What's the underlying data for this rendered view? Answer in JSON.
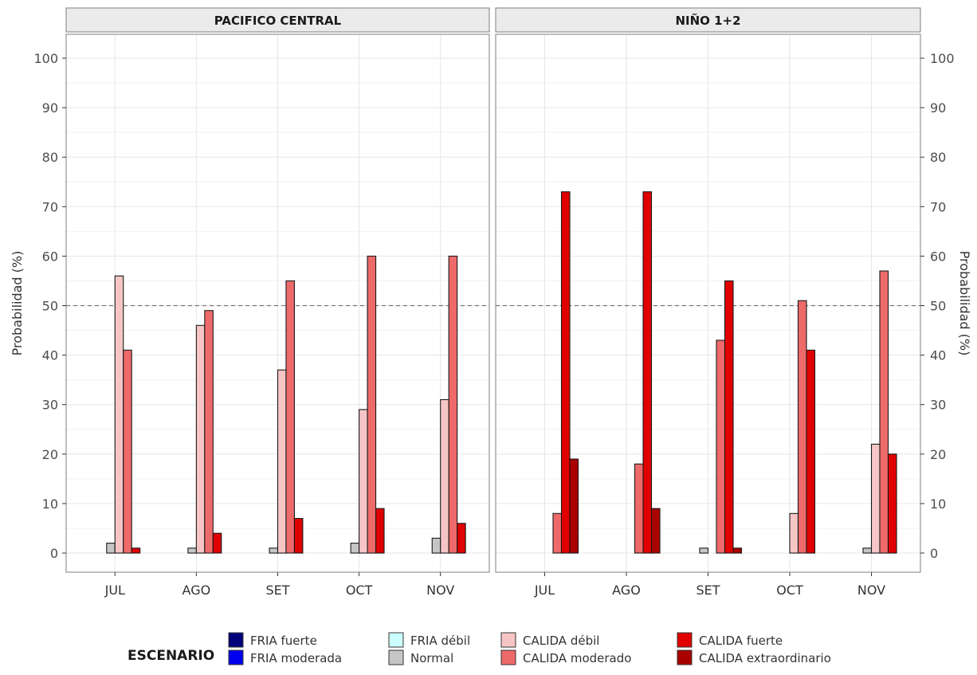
{
  "chart_data": {
    "type": "bar",
    "ylabel": "Probabilidad (%)",
    "ylim": [
      0,
      100
    ],
    "yticks": [
      0,
      10,
      20,
      30,
      40,
      50,
      60,
      70,
      80,
      90,
      100
    ],
    "reference_line": 50,
    "grid": true,
    "categories": [
      "JUL",
      "AGO",
      "SET",
      "OCT",
      "NOV"
    ],
    "legend": {
      "title": "ESCENARIO",
      "position": "bottom",
      "entries": [
        {
          "name": "FRIA fuerte",
          "color": "#00007a"
        },
        {
          "name": "FRIA moderada",
          "color": "#0000ee"
        },
        {
          "name": "FRIA débil",
          "color": "#ccffff"
        },
        {
          "name": "Normal",
          "color": "#c6c6c6"
        },
        {
          "name": "CALIDA débil",
          "color": "#f6c6c6"
        },
        {
          "name": "CALIDA moderado",
          "color": "#ee6a6a"
        },
        {
          "name": "CALIDA fuerte",
          "color": "#e00000"
        },
        {
          "name": "CALIDA extraordinario",
          "color": "#aa0000"
        }
      ]
    },
    "panels": [
      {
        "title": "PACIFICO CENTRAL",
        "series": [
          {
            "name": "FRIA fuerte",
            "values": [
              0,
              0,
              0,
              0,
              0
            ]
          },
          {
            "name": "FRIA moderada",
            "values": [
              0,
              0,
              0,
              0,
              0
            ]
          },
          {
            "name": "FRIA débil",
            "values": [
              0,
              0,
              0,
              0,
              0
            ]
          },
          {
            "name": "Normal",
            "values": [
              2,
              1,
              1,
              2,
              3
            ]
          },
          {
            "name": "CALIDA débil",
            "values": [
              56,
              46,
              37,
              29,
              31
            ]
          },
          {
            "name": "CALIDA moderado",
            "values": [
              41,
              49,
              55,
              60,
              60
            ]
          },
          {
            "name": "CALIDA fuerte",
            "values": [
              1,
              4,
              7,
              9,
              6
            ]
          },
          {
            "name": "CALIDA extraordinario",
            "values": [
              0,
              0,
              0,
              0,
              0
            ]
          }
        ]
      },
      {
        "title": "NIÑO 1+2",
        "series": [
          {
            "name": "FRIA fuerte",
            "values": [
              0,
              0,
              0,
              0,
              0
            ]
          },
          {
            "name": "FRIA moderada",
            "values": [
              0,
              0,
              0,
              0,
              0
            ]
          },
          {
            "name": "FRIA débil",
            "values": [
              0,
              0,
              0,
              0,
              0
            ]
          },
          {
            "name": "Normal",
            "values": [
              0,
              0,
              1,
              0,
              1
            ]
          },
          {
            "name": "CALIDA débil",
            "values": [
              0,
              0,
              0,
              8,
              22
            ]
          },
          {
            "name": "CALIDA moderado",
            "values": [
              8,
              18,
              43,
              51,
              57
            ]
          },
          {
            "name": "CALIDA fuerte",
            "values": [
              73,
              73,
              55,
              41,
              20
            ]
          },
          {
            "name": "CALIDA extraordinario",
            "values": [
              19,
              9,
              1,
              0,
              0
            ]
          }
        ]
      }
    ]
  }
}
